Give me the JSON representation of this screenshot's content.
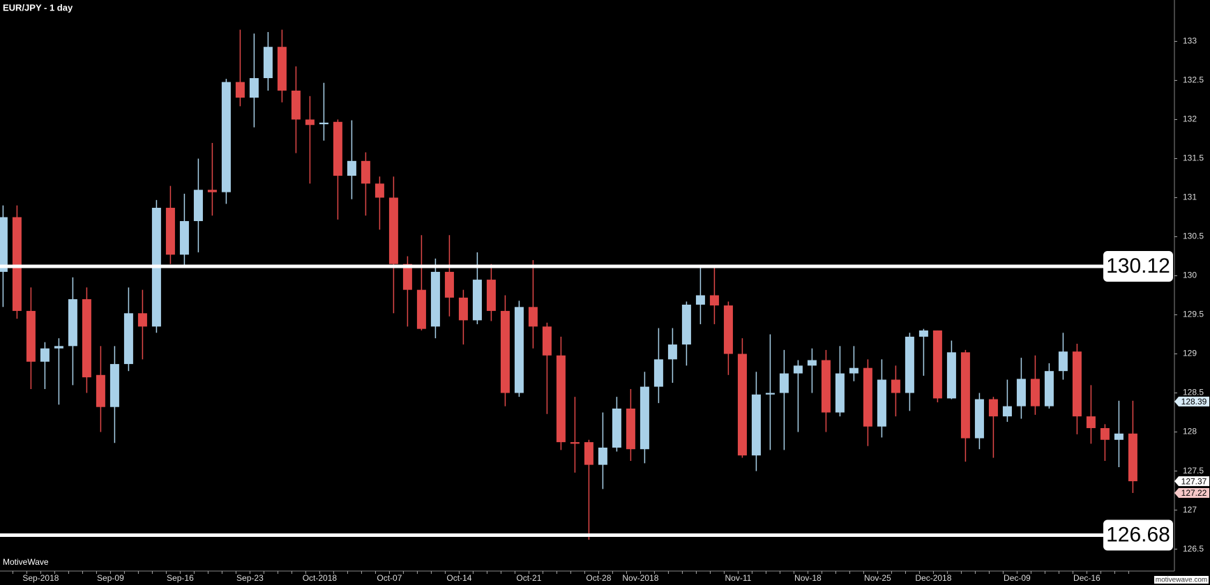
{
  "chart_data": {
    "type": "candlestick",
    "title": "EUR/JPY - 1 day",
    "watermark": "MotiveWave",
    "source": "motivewave.com",
    "up_color": "#a8d0e8",
    "down_color": "#e04848",
    "categories": [
      null,
      null,
      null,
      "Sep-2018",
      null,
      null,
      null,
      null,
      "Sep-09",
      null,
      null,
      null,
      null,
      "Sep-16",
      null,
      null,
      null,
      null,
      "Sep-23",
      null,
      null,
      null,
      null,
      "Oct-2018",
      null,
      null,
      null,
      null,
      "Oct-07",
      null,
      null,
      null,
      null,
      "Oct-14",
      null,
      null,
      null,
      null,
      "Oct-21",
      null,
      null,
      null,
      null,
      "Oct-28",
      null,
      null,
      "Nov-2018",
      null,
      null,
      null,
      null,
      null,
      null,
      "Nov-11",
      null,
      null,
      null,
      null,
      "Nov-18",
      null,
      null,
      null,
      null,
      "Nov-25",
      null,
      null,
      null,
      "Dec-2018",
      null,
      null,
      null,
      null,
      null,
      "Dec-09",
      null,
      null,
      null,
      null,
      "Dec-16",
      null,
      null,
      null
    ],
    "open": [
      130.05,
      130.75,
      129.55,
      128.9,
      129.07,
      129.1,
      129.7,
      128.73,
      128.32,
      128.87,
      129.52,
      129.35,
      130.87,
      130.27,
      130.7,
      131.1,
      131.07,
      132.48,
      132.28,
      132.53,
      132.93,
      132.37,
      132.0,
      131.94,
      131.97,
      131.28,
      131.47,
      131.18,
      131.0,
      130.15,
      129.82,
      129.35,
      130.05,
      129.72,
      129.43,
      129.95,
      129.55,
      128.5,
      129.6,
      129.35,
      128.98,
      127.87,
      127.87,
      127.58,
      127.8,
      128.3,
      127.78,
      128.58,
      128.93,
      129.12,
      129.63,
      129.75,
      129.62,
      129.0,
      127.7,
      128.48,
      128.5,
      128.75,
      128.85,
      128.92,
      128.25,
      128.75,
      128.82,
      128.07,
      128.67,
      128.5,
      129.22,
      129.3,
      128.43,
      129.02,
      127.92,
      128.42,
      128.2,
      128.33,
      128.68,
      128.33,
      128.78,
      129.03,
      128.2,
      128.05,
      127.9,
      127.98
    ],
    "high": [
      130.9,
      130.9,
      129.85,
      129.15,
      129.2,
      129.98,
      129.85,
      129.1,
      129.1,
      129.85,
      129.82,
      130.97,
      131.15,
      131.05,
      131.5,
      131.7,
      132.52,
      133.15,
      133.1,
      133.12,
      133.15,
      132.68,
      132.3,
      132.47,
      132.0,
      131.99,
      131.58,
      131.27,
      131.27,
      130.25,
      130.52,
      130.22,
      130.52,
      129.82,
      130.3,
      130.15,
      129.75,
      129.68,
      130.2,
      129.4,
      129.22,
      128.45,
      127.9,
      128.25,
      128.45,
      128.55,
      128.77,
      129.33,
      129.33,
      129.67,
      130.12,
      130.12,
      129.67,
      129.2,
      128.77,
      129.25,
      129.05,
      128.92,
      129.07,
      129.05,
      129.1,
      129.1,
      128.93,
      128.93,
      128.85,
      129.27,
      129.32,
      129.3,
      129.17,
      129.05,
      128.5,
      128.45,
      128.67,
      128.95,
      128.98,
      128.88,
      129.27,
      129.13,
      128.6,
      128.1,
      128.4,
      128.4
    ],
    "low": [
      129.6,
      129.45,
      128.55,
      128.55,
      128.35,
      128.6,
      128.5,
      128.0,
      127.86,
      128.78,
      128.93,
      129.27,
      130.15,
      130.12,
      130.3,
      130.77,
      130.92,
      132.17,
      131.9,
      132.37,
      132.22,
      131.57,
      131.18,
      131.73,
      130.72,
      130.98,
      130.77,
      130.59,
      129.52,
      129.35,
      129.3,
      129.2,
      129.48,
      129.12,
      129.38,
      129.42,
      128.33,
      128.45,
      129.07,
      128.23,
      127.77,
      127.48,
      126.62,
      127.27,
      127.75,
      127.63,
      127.6,
      128.37,
      128.63,
      128.85,
      129.38,
      129.38,
      128.73,
      127.67,
      127.5,
      127.77,
      127.77,
      128.0,
      128.5,
      128.0,
      128.2,
      128.65,
      127.82,
      127.93,
      128.2,
      128.27,
      128.72,
      128.38,
      128.42,
      127.62,
      127.78,
      127.67,
      128.13,
      128.17,
      128.22,
      128.3,
      128.67,
      127.97,
      127.85,
      127.63,
      127.55,
      127.22
    ],
    "close": [
      130.75,
      129.55,
      128.9,
      129.07,
      129.1,
      129.7,
      128.7,
      128.32,
      128.87,
      129.52,
      129.35,
      130.87,
      130.27,
      130.7,
      131.1,
      131.07,
      132.48,
      132.28,
      132.53,
      132.93,
      132.37,
      132.0,
      131.93,
      131.96,
      131.28,
      131.47,
      131.18,
      131.0,
      130.15,
      129.82,
      129.32,
      130.05,
      129.72,
      129.43,
      129.95,
      129.55,
      128.5,
      129.6,
      129.35,
      128.98,
      127.87,
      127.85,
      127.58,
      127.8,
      128.3,
      127.78,
      128.58,
      128.93,
      129.12,
      129.63,
      129.75,
      129.62,
      129.0,
      127.7,
      128.48,
      128.5,
      128.75,
      128.85,
      128.92,
      128.25,
      128.75,
      128.82,
      128.07,
      128.67,
      128.5,
      129.22,
      129.3,
      128.43,
      129.02,
      127.92,
      128.42,
      128.2,
      128.33,
      128.68,
      128.33,
      128.78,
      129.03,
      128.2,
      128.05,
      127.9,
      127.98,
      127.37
    ],
    "ylim": [
      126.22,
      133.53
    ],
    "yticks": [
      126.5,
      127,
      127.5,
      128,
      128.5,
      129,
      129.5,
      130,
      130.5,
      131,
      131.5,
      132,
      132.5,
      133
    ],
    "levels": [
      {
        "value": 130.12,
        "color": "#ffffff"
      },
      {
        "value": 126.68,
        "color": "#ffffff"
      }
    ],
    "price_markers": [
      {
        "value": 128.39,
        "color": "#d8ecf8"
      },
      {
        "value": 127.37,
        "color": "#ffffff"
      },
      {
        "value": 127.22,
        "color": "#f6c8c8"
      }
    ]
  }
}
